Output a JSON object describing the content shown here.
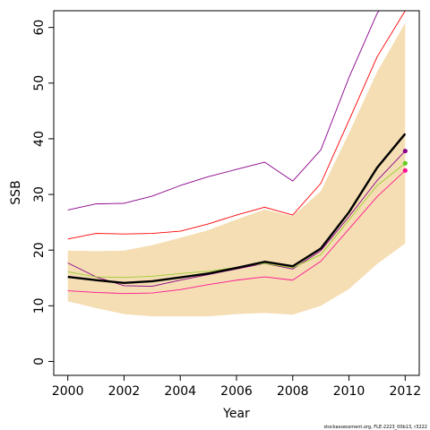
{
  "chart_data": {
    "type": "line",
    "xlabel": "Year",
    "ylabel": "SSB",
    "xlim": [
      1999.5,
      2012.5
    ],
    "ylim": [
      -2.5,
      63
    ],
    "x_ticks": [
      2000,
      2002,
      2004,
      2006,
      2008,
      2010,
      2012
    ],
    "y_ticks": [
      0,
      10,
      20,
      30,
      40,
      50,
      60
    ],
    "x": [
      2000,
      2001,
      2002,
      2003,
      2004,
      2005,
      2006,
      2007,
      2008,
      2009,
      2010,
      2011,
      2012
    ],
    "band": {
      "color": "#f5deb3",
      "lower": [
        10.8,
        9.6,
        8.5,
        8.1,
        8.1,
        8.1,
        8.5,
        8.7,
        8.4,
        10.0,
        13.0,
        17.5,
        21.2
      ],
      "upper": [
        19.9,
        19.8,
        19.9,
        20.9,
        22.2,
        23.6,
        25.5,
        27.3,
        26.1,
        30.6,
        41.0,
        52.0,
        60.8
      ]
    },
    "series": [
      {
        "color": "#000000",
        "width": 2.4,
        "values": [
          15.2,
          14.6,
          14.1,
          14.4,
          15.1,
          15.8,
          16.8,
          17.9,
          17.1,
          20.3,
          26.8,
          34.8,
          40.9
        ]
      },
      {
        "color": "#8b008b",
        "width": 0.9,
        "values": [
          27.2,
          28.3,
          28.4,
          29.7,
          31.6,
          33.2,
          34.5,
          35.8,
          32.4,
          38.0,
          51.0,
          62.5,
          70.0
        ]
      },
      {
        "color": "#8b008b",
        "width": 0.9,
        "values": [
          17.7,
          15.2,
          13.6,
          13.5,
          14.6,
          15.6,
          16.6,
          17.6,
          16.6,
          19.9,
          26.0,
          32.5,
          37.8
        ]
      },
      {
        "color": "#ff0000",
        "width": 0.9,
        "values": [
          22.0,
          23.0,
          22.9,
          23.0,
          23.4,
          24.7,
          26.3,
          27.7,
          26.3,
          32.0,
          43.3,
          54.7,
          63.0
        ]
      },
      {
        "color": "#ff1493",
        "width": 0.9,
        "values": [
          12.7,
          12.4,
          12.2,
          12.3,
          12.9,
          13.8,
          14.6,
          15.2,
          14.6,
          18.0,
          23.8,
          29.6,
          34.3
        ]
      },
      {
        "color": "#9acd32",
        "width": 0.9,
        "values": [
          16.1,
          15.2,
          15.1,
          15.3,
          15.8,
          16.2,
          16.9,
          17.6,
          16.8,
          19.2,
          25.4,
          31.6,
          35.6
        ]
      }
    ],
    "end_points": [
      {
        "x": 2012,
        "y": 37.8,
        "color": "#8b008b"
      },
      {
        "x": 2012,
        "y": 35.6,
        "color": "#66cc22"
      },
      {
        "x": 2012,
        "y": 34.3,
        "color": "#ff1493"
      }
    ]
  },
  "credit": "stockassessment.org, FLE-2223_00b13, r3222"
}
